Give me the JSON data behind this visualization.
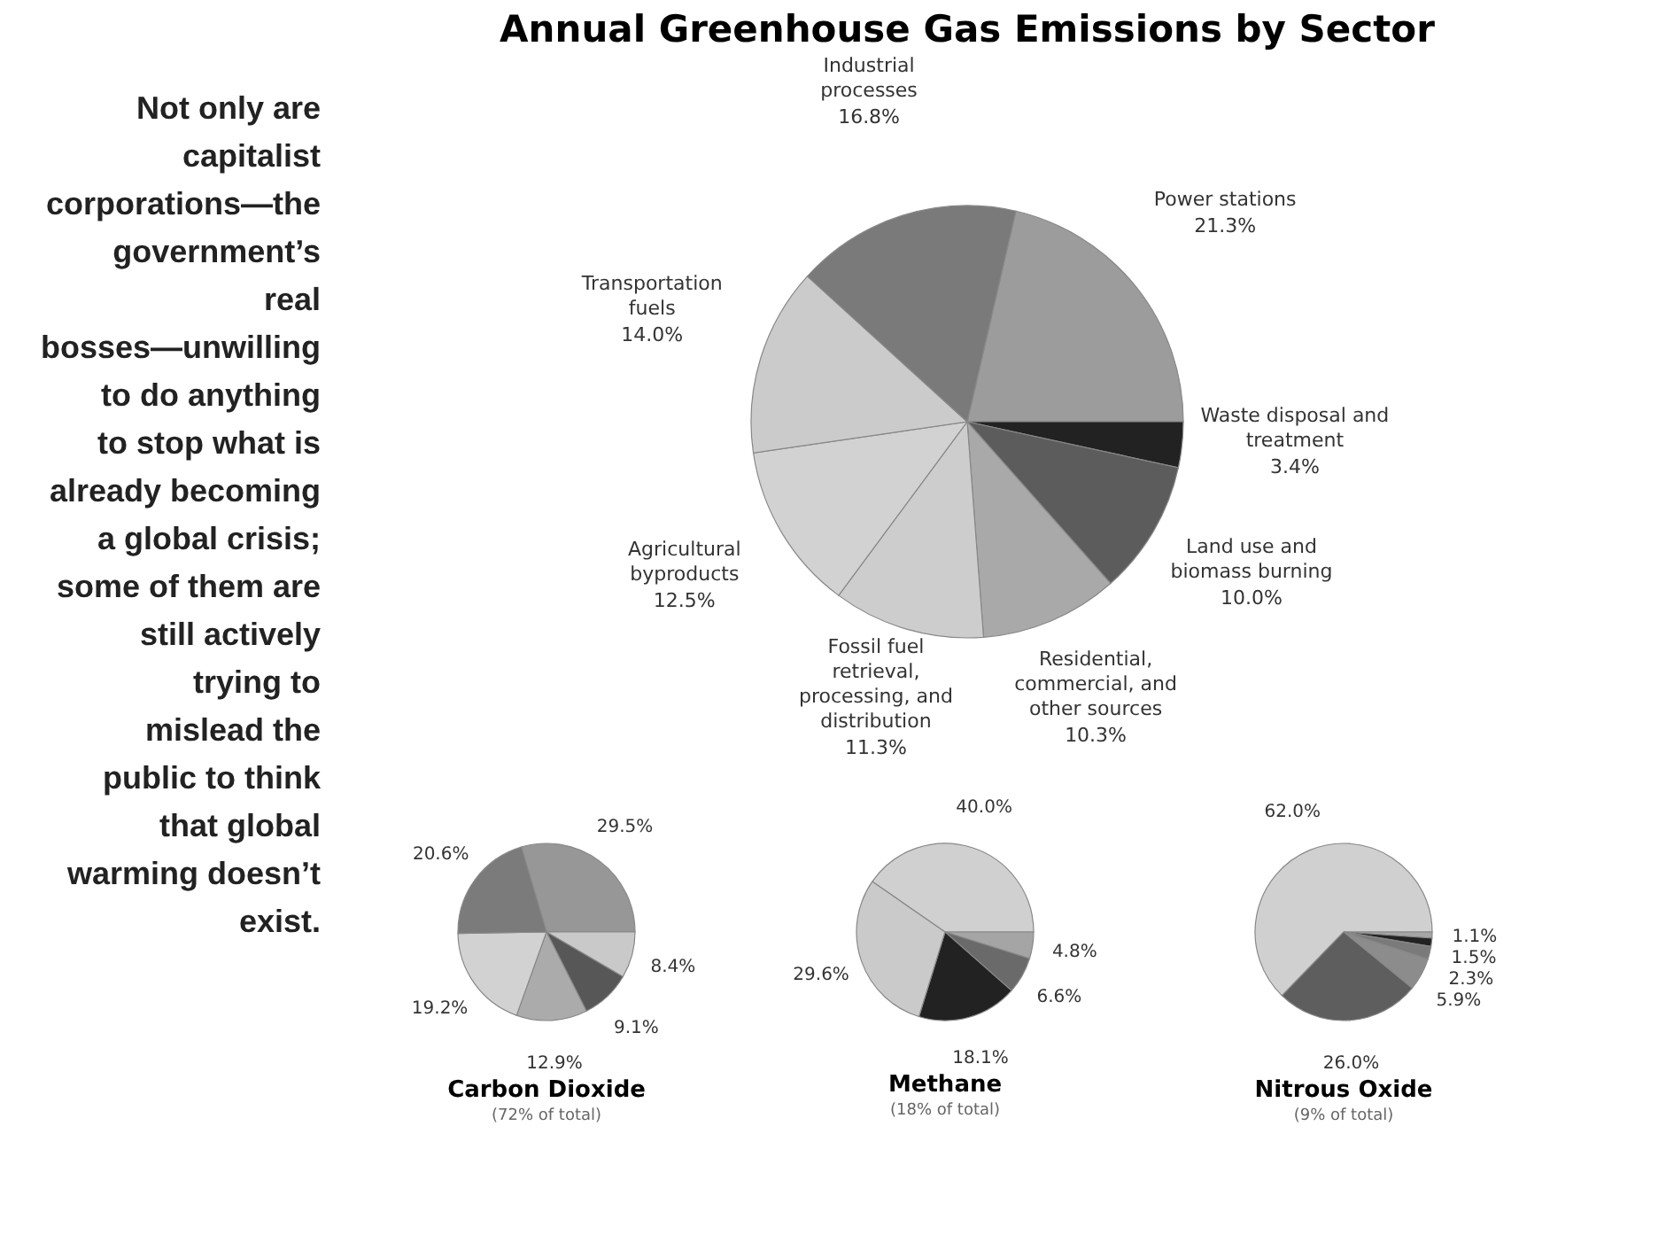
{
  "chart_data": [
    {
      "type": "pie",
      "title": "Annual Greenhouse Gas Emissions by Sector",
      "categories": [
        "Power stations",
        "Waste disposal and treatment",
        "Land use and biomass burning",
        "Residential, commercial, and other sources",
        "Fossil fuel retrieval, processing, and distribution",
        "Agricultural byproducts",
        "Transportation fuels",
        "Industrial processes"
      ],
      "values": [
        21.3,
        3.4,
        10.0,
        10.3,
        11.3,
        12.5,
        14.0,
        16.8
      ],
      "value_labels": [
        "21.3%",
        "3.4%",
        "10.0%",
        "10.3%",
        "11.3%",
        "12.5%",
        "14.0%",
        "16.8%"
      ],
      "colors": [
        "#9c9c9c",
        "#222222",
        "#5c5c5c",
        "#a9a9a9",
        "#cdcdcd",
        "#d2d2d2",
        "#cbcbcb",
        "#7a7a7a"
      ],
      "annotations": [
        "Not only are capitalist corporations—the government’s real bosses—unwilling to do anything to stop what is already becoming a global crisis; some of them are still actively trying to mislead the public to think that global warming doesn’t exist."
      ]
    },
    {
      "type": "pie",
      "title": "Carbon Dioxide",
      "subtitle": "(72% of total)",
      "categories": [
        null,
        null,
        null,
        null,
        null,
        null
      ],
      "values": [
        29.5,
        8.4,
        9.1,
        12.9,
        19.2,
        20.6
      ],
      "value_labels": [
        "29.5%",
        "8.4%",
        "9.1%",
        "12.9%",
        "19.2%",
        "20.6%"
      ],
      "colors": [
        "#979797",
        "#c9c9c9",
        "#575757",
        "#ababab",
        "#d2d2d2",
        "#7b7b7b"
      ]
    },
    {
      "type": "pie",
      "title": "Methane",
      "subtitle": "(18% of total)",
      "categories": [
        null,
        null,
        null,
        null,
        null
      ],
      "values": [
        40.0,
        4.8,
        6.6,
        18.1,
        29.6
      ],
      "value_labels": [
        "40.0%",
        "4.8%",
        "6.6%",
        "18.1%",
        "29.6%"
      ],
      "colors": [
        "#d0d0d0",
        "#a5a5a5",
        "#6a6a6a",
        "#222222",
        "#cacaca"
      ]
    },
    {
      "type": "pie",
      "title": "Nitrous Oxide",
      "subtitle": "(9% of total)",
      "categories": [
        null,
        null,
        null,
        null,
        null,
        null
      ],
      "values": [
        62.0,
        1.1,
        1.5,
        2.3,
        5.9,
        26.0
      ],
      "value_labels": [
        "62.0%",
        "1.1%",
        "1.5%",
        "2.3%",
        "5.9%",
        "26.0%"
      ],
      "colors": [
        "#d0d0d0",
        "#a5a5a5",
        "#222222",
        "#7a7a7a",
        "#8c8c8c",
        "#5e5e5e"
      ]
    }
  ]
}
